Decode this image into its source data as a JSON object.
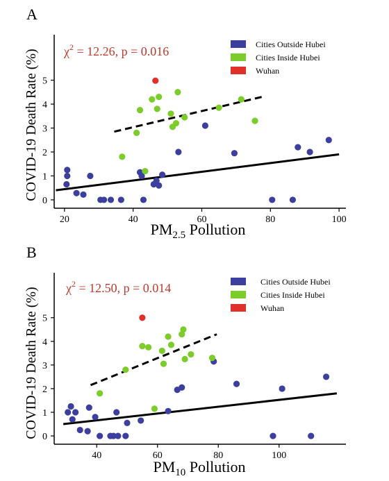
{
  "colors": {
    "outside": "#3c3f9e",
    "inside": "#7ccc2a",
    "wuhan": "#e0302a",
    "stat": "#c0392b",
    "axis": "#000000"
  },
  "legend_labels": [
    "Cities Outside Hubei",
    "Cities Inside Hubei",
    "Wuhan"
  ],
  "chart_data": [
    {
      "type": "scatter",
      "panel_label": "A",
      "stat_chi": "χ",
      "stat_sup": "2",
      "stat_rest": " = 12.26, p = 0.016",
      "ylabel": "COVID-19 Death Rate (%)",
      "xlabel_pre": "PM",
      "xlabel_sub": "2.5",
      "xlabel_post": " Pollution",
      "xlim": [
        17,
        102
      ],
      "ylim": [
        -0.35,
        6.9
      ],
      "xticks": [
        20,
        40,
        60,
        80,
        100
      ],
      "yticks": [
        0,
        1,
        2,
        3,
        4,
        5
      ],
      "series": [
        {
          "name": "Cities Outside Hubei",
          "color_key": "outside",
          "points": [
            [
              20.8,
              1.25
            ],
            [
              20.8,
              1.0
            ],
            [
              20.6,
              0.65
            ],
            [
              23.5,
              0.28
            ],
            [
              25.5,
              0.22
            ],
            [
              27.5,
              1.0
            ],
            [
              30.5,
              0.0
            ],
            [
              31.5,
              0.0
            ],
            [
              33.5,
              0.0
            ],
            [
              36.5,
              0.0
            ],
            [
              42.0,
              1.15
            ],
            [
              42.5,
              1.0
            ],
            [
              43.0,
              0.0
            ],
            [
              46.0,
              0.65
            ],
            [
              46.8,
              0.8
            ],
            [
              48.5,
              1.05
            ],
            [
              53.2,
              2.0
            ],
            [
              61.0,
              3.1
            ],
            [
              69.5,
              1.95
            ],
            [
              80.5,
              0.0
            ],
            [
              86.5,
              0.0
            ],
            [
              88.0,
              2.2
            ],
            [
              91.5,
              2.0
            ],
            [
              97.0,
              2.5
            ],
            [
              47.5,
              0.6
            ]
          ]
        },
        {
          "name": "Cities Inside Hubei",
          "color_key": "inside",
          "points": [
            [
              36.8,
              1.8
            ],
            [
              41.0,
              2.8
            ],
            [
              42.0,
              3.75
            ],
            [
              43.5,
              1.2
            ],
            [
              45.5,
              4.2
            ],
            [
              47.0,
              3.8
            ],
            [
              47.5,
              4.3
            ],
            [
              51.0,
              3.6
            ],
            [
              51.5,
              3.05
            ],
            [
              52.5,
              3.2
            ],
            [
              53.0,
              4.5
            ],
            [
              55.0,
              3.45
            ],
            [
              65.0,
              3.85
            ],
            [
              71.5,
              4.2
            ],
            [
              75.5,
              3.3
            ]
          ]
        },
        {
          "name": "Wuhan",
          "color_key": "wuhan",
          "points": [
            [
              46.5,
              4.98
            ]
          ]
        }
      ],
      "fit_solid": [
        [
          17.5,
          0.4
        ],
        [
          100,
          1.9
        ]
      ],
      "fit_dashed": [
        [
          34.5,
          2.85
        ],
        [
          77.5,
          4.3
        ]
      ]
    },
    {
      "type": "scatter",
      "panel_label": "B",
      "stat_chi": "χ",
      "stat_sup": "2",
      "stat_rest": " = 12.50, p = 0.014",
      "ylabel": "COVID-19 Death Rate (%)",
      "xlabel_pre": "PM",
      "xlabel_sub": "10",
      "xlabel_post": " Pollution",
      "xlim": [
        26,
        122
      ],
      "ylim": [
        -0.35,
        6.9
      ],
      "xticks": [
        40,
        60,
        80,
        100
      ],
      "yticks": [
        0,
        1,
        2,
        3,
        4,
        5
      ],
      "series": [
        {
          "name": "Cities Outside Hubei",
          "color_key": "outside",
          "points": [
            [
              30.5,
              1.0
            ],
            [
              31.5,
              1.25
            ],
            [
              32.0,
              0.7
            ],
            [
              33.0,
              1.0
            ],
            [
              34.5,
              0.25
            ],
            [
              37.0,
              0.2
            ],
            [
              37.5,
              1.2
            ],
            [
              39.5,
              0.8
            ],
            [
              41.0,
              0.0
            ],
            [
              44.5,
              0.0
            ],
            [
              45.5,
              0.0
            ],
            [
              46.5,
              1.0
            ],
            [
              47.0,
              0.0
            ],
            [
              49.5,
              0.0
            ],
            [
              50.0,
              0.55
            ],
            [
              54.5,
              0.65
            ],
            [
              63.5,
              1.05
            ],
            [
              66.5,
              1.95
            ],
            [
              68.0,
              2.05
            ],
            [
              78.5,
              3.15
            ],
            [
              86.0,
              2.2
            ],
            [
              98.0,
              0.0
            ],
            [
              101.0,
              2.0
            ],
            [
              110.5,
              0.0
            ],
            [
              115.5,
              2.5
            ]
          ]
        },
        {
          "name": "Cities Inside Hubei",
          "color_key": "inside",
          "points": [
            [
              41.0,
              1.8
            ],
            [
              49.5,
              2.8
            ],
            [
              55.0,
              3.8
            ],
            [
              57.0,
              3.75
            ],
            [
              59.0,
              1.15
            ],
            [
              61.5,
              3.6
            ],
            [
              62.0,
              3.05
            ],
            [
              63.5,
              4.2
            ],
            [
              64.5,
              3.85
            ],
            [
              68.0,
              4.3
            ],
            [
              68.5,
              4.5
            ],
            [
              69.0,
              3.25
            ],
            [
              71.0,
              3.45
            ],
            [
              78.0,
              3.3
            ]
          ]
        },
        {
          "name": "Wuhan",
          "color_key": "wuhan",
          "points": [
            [
              55.0,
              5.0
            ]
          ]
        }
      ],
      "fit_solid": [
        [
          29.0,
          0.5
        ],
        [
          119.0,
          1.8
        ]
      ],
      "fit_dashed": [
        [
          38.0,
          2.15
        ],
        [
          79.5,
          4.3
        ]
      ]
    }
  ]
}
